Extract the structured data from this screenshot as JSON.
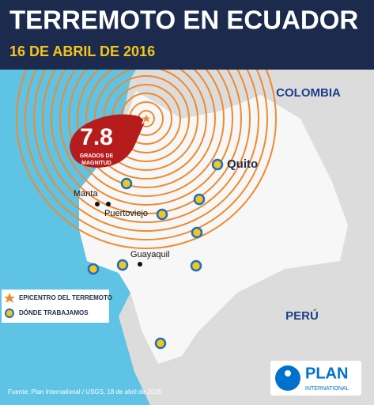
{
  "header": {
    "title": "TERREMOTO EN ECUADOR",
    "date": "16 DE ABRIL DE 2016"
  },
  "countries": [
    "COLOMBIA",
    "PERÚ"
  ],
  "cities": [
    "Quito",
    "Manta",
    "Puertoviejo",
    "Guayaquil"
  ],
  "magnitude": {
    "value": "7.8",
    "line1": "GRADOS DE",
    "line2": "MAGNITUD"
  },
  "legend": [
    "EPICENTRO DEL TERREMOTO",
    "DÓNDE TRABAJAMOS"
  ],
  "source": "Fuente: Plan International / USGS, 18 de abril de 2016",
  "logo": {
    "name": "PLAN",
    "sub": "INTERNATIONAL"
  }
}
